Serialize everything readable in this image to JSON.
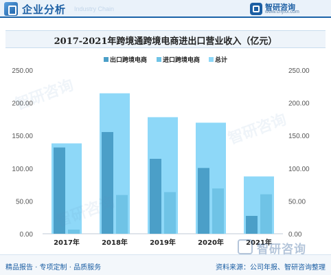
{
  "header": {
    "title": "企业分析",
    "subtitle": "Industry Chain",
    "brand_name": "智研咨询",
    "brand_url": "www.chyxx.com"
  },
  "chart_data": {
    "type": "bar",
    "title": "2017-2021年跨境通跨境电商进出口营业收入（亿元）",
    "categories": [
      "2017年",
      "2018年",
      "2019年",
      "2020年",
      "2021年"
    ],
    "series": [
      {
        "name": "出口跨境电商",
        "values": [
          131.8,
          155.4,
          114.5,
          100.5,
          27.3
        ],
        "color": "#4b9fc8"
      },
      {
        "name": "进口跨境电商",
        "values": [
          6.3,
          59.2,
          63.6,
          69.2,
          60.3
        ],
        "color": "#6fc3e6"
      },
      {
        "name": "总计",
        "values": [
          138.1,
          214.6,
          178.1,
          169.7,
          87.6
        ],
        "color": "#8ed8f8"
      }
    ],
    "ylim": [
      0,
      250
    ],
    "yticks": [
      "0.00",
      "50.00",
      "100.00",
      "150.00",
      "200.00",
      "250.00"
    ],
    "y2ticks": [
      "0.00",
      "50.00",
      "100.00",
      "150.00",
      "200.00",
      "250.00"
    ],
    "legend_position": "top",
    "grid": false,
    "xlabel": "",
    "ylabel": ""
  },
  "footer": {
    "left": "精品报告 · 专项定制 · 品质服务",
    "right": "资料来源：公司年报、智研咨询整理"
  },
  "watermark_text": "智研咨询"
}
